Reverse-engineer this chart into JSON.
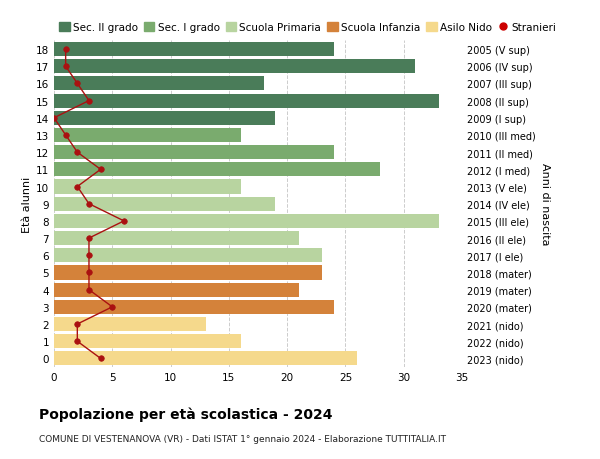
{
  "ages": [
    18,
    17,
    16,
    15,
    14,
    13,
    12,
    11,
    10,
    9,
    8,
    7,
    6,
    5,
    4,
    3,
    2,
    1,
    0
  ],
  "labels_right": [
    "2005 (V sup)",
    "2006 (IV sup)",
    "2007 (III sup)",
    "2008 (II sup)",
    "2009 (I sup)",
    "2010 (III med)",
    "2011 (II med)",
    "2012 (I med)",
    "2013 (V ele)",
    "2014 (IV ele)",
    "2015 (III ele)",
    "2016 (II ele)",
    "2017 (I ele)",
    "2018 (mater)",
    "2019 (mater)",
    "2020 (mater)",
    "2021 (nido)",
    "2022 (nido)",
    "2023 (nido)"
  ],
  "bar_values": [
    24,
    31,
    18,
    33,
    19,
    16,
    24,
    28,
    16,
    19,
    33,
    21,
    23,
    23,
    21,
    24,
    13,
    16,
    26
  ],
  "bar_colors": [
    "#4a7c59",
    "#4a7c59",
    "#4a7c59",
    "#4a7c59",
    "#4a7c59",
    "#7aab6e",
    "#7aab6e",
    "#7aab6e",
    "#b8d4a0",
    "#b8d4a0",
    "#b8d4a0",
    "#b8d4a0",
    "#b8d4a0",
    "#d4823a",
    "#d4823a",
    "#d4823a",
    "#f5d98c",
    "#f5d98c",
    "#f5d98c"
  ],
  "stranieri_values": [
    1,
    1,
    2,
    3,
    0,
    1,
    2,
    4,
    2,
    3,
    6,
    3,
    3,
    3,
    3,
    5,
    2,
    2,
    4
  ],
  "legend_labels": [
    "Sec. II grado",
    "Sec. I grado",
    "Scuola Primaria",
    "Scuola Infanzia",
    "Asilo Nido",
    "Stranieri"
  ],
  "legend_colors": [
    "#4a7c59",
    "#7aab6e",
    "#b8d4a0",
    "#d4823a",
    "#f5d98c",
    "#cc0000"
  ],
  "stranieri_line_color": "#aa1111",
  "ylabel": "Età alunni",
  "ylabel_right": "Anni di nascita",
  "title": "Popolazione per età scolastica - 2024",
  "subtitle": "COMUNE DI VESTENANOVA (VR) - Dati ISTAT 1° gennaio 2024 - Elaborazione TUTTITALIA.IT",
  "xlim": [
    0,
    35
  ],
  "xticks": [
    0,
    5,
    10,
    15,
    20,
    25,
    30,
    35
  ],
  "bg_color": "#ffffff",
  "bar_height": 0.82
}
